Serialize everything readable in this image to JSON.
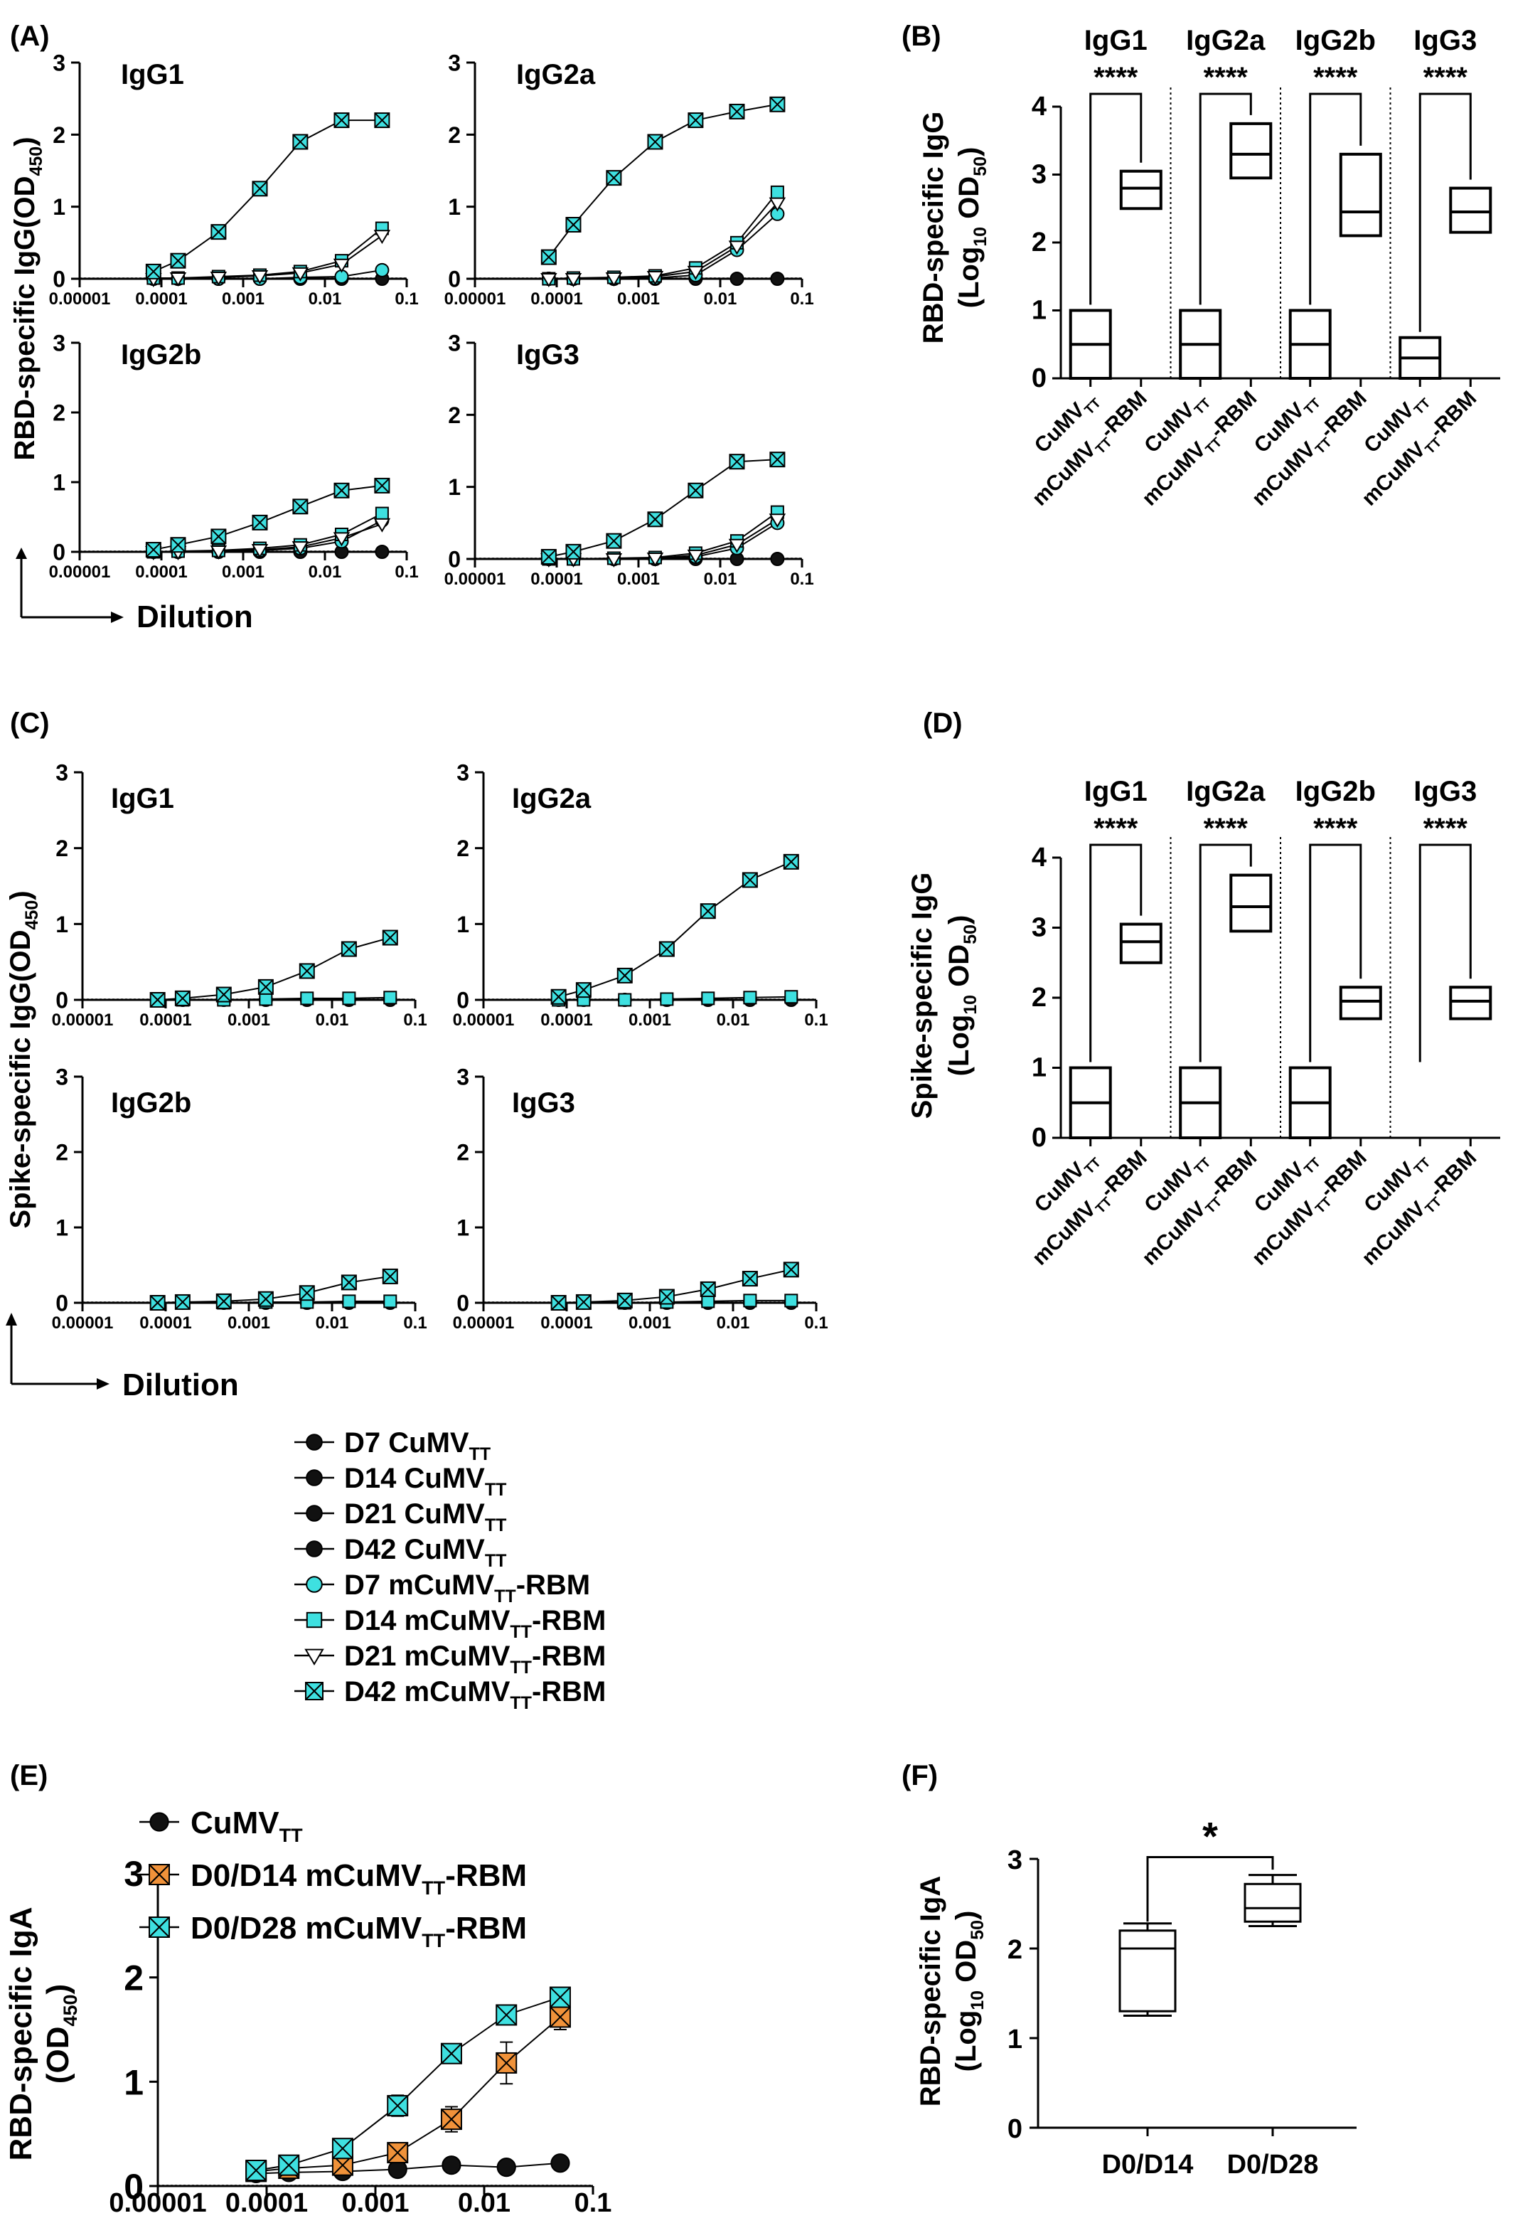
{
  "figure": {
    "panels": {
      "A": "(A)",
      "B": "(B)",
      "C": "(C)",
      "D": "(D)",
      "E": "(E)",
      "F": "(F)"
    },
    "dilution_label": "Dilution",
    "ylabel_A": "RBD-specific IgG(OD",
    "ylabel_A_sub": "450",
    "ylabel_A_close": ")",
    "ylabel_C": "Spike-specific IgG(OD",
    "ylabel_C_sub": "450",
    "ylabel_C_close": ")",
    "ylabel_B_1": "RBD-specific IgG",
    "ylabel_D_1": "Spike-specific IgG",
    "ylabel_BD_2a": "(Log",
    "ylabel_BD_2sub": "10",
    "ylabel_BD_2b": " OD",
    "ylabel_BD_2sub2": "50",
    "ylabel_BD_2c": ")",
    "ylabel_E_1": "RBD-specific IgA",
    "ylabel_E_2a": "(OD",
    "ylabel_E_2sub": "450",
    "ylabel_E_2c": ")",
    "ylabel_F_1": "RBD-specific IgA",
    "xtick_labels": [
      "0.00001",
      "0.0001",
      "0.001",
      "0.01",
      "0.1"
    ],
    "group_ctrl": "CuMV",
    "group_ctrl_sub": "TT",
    "group_rbm_a": "mCuMV",
    "group_rbm_sub": "TT",
    "group_rbm_b": "-RBM",
    "sig_4": "****",
    "sig_1": "*",
    "legend_main": [
      {
        "day": "D7",
        "pre": "CuMV",
        "sub": "TT",
        "post": ""
      },
      {
        "day": "D14",
        "pre": "CuMV",
        "sub": "TT",
        "post": ""
      },
      {
        "day": "D21",
        "pre": "CuMV",
        "sub": "TT",
        "post": ""
      },
      {
        "day": "D42",
        "pre": "CuMV",
        "sub": "TT",
        "post": ""
      },
      {
        "day": "D7",
        "pre": "mCuMV",
        "sub": "TT",
        "post": "-RBM"
      },
      {
        "day": "D14",
        "pre": "mCuMV",
        "sub": "TT",
        "post": "-RBM"
      },
      {
        "day": "D21",
        "pre": "mCuMV",
        "sub": "TT",
        "post": "-RBM"
      },
      {
        "day": "D42",
        "pre": "mCuMV",
        "sub": "TT",
        "post": "-RBM"
      }
    ],
    "legend_E": [
      {
        "pre": "CuMV",
        "sub": "TT",
        "post": ""
      },
      {
        "pre": "D0/D14 mCuMV",
        "sub": "TT",
        "post": "-RBM"
      },
      {
        "pre": "D0/D28 mCuMV",
        "sub": "TT",
        "post": "-RBM"
      }
    ],
    "colors": {
      "ctrl": "#111111",
      "rbm": "#3ee0e0",
      "d14": "#f0923a",
      "d28": "#3ee0e0"
    }
  },
  "chart_data": [
    {
      "panel": "A",
      "type": "line",
      "xscale": "log",
      "ylim": [
        0,
        3
      ],
      "x": [
        8e-05,
        0.00016,
        0.0005,
        0.0016,
        0.005,
        0.016,
        0.05
      ],
      "subplots": [
        {
          "title": "IgG1",
          "series": [
            {
              "name": "D7 CuMVTT",
              "values": [
                0,
                0,
                0,
                0,
                0,
                0,
                0
              ]
            },
            {
              "name": "D7 mCuMVTT-RBM",
              "values": [
                0,
                0,
                0,
                0,
                0.02,
                0.03,
                0.12
              ]
            },
            {
              "name": "D14 mCuMVTT-RBM",
              "values": [
                0.01,
                0.01,
                0.03,
                0.05,
                0.1,
                0.25,
                0.7
              ]
            },
            {
              "name": "D21 mCuMVTT-RBM",
              "values": [
                0,
                0.01,
                0.02,
                0.04,
                0.08,
                0.2,
                0.6
              ]
            },
            {
              "name": "D42 mCuMVTT-RBM",
              "values": [
                0.1,
                0.25,
                0.65,
                1.25,
                1.9,
                2.2,
                2.2
              ]
            }
          ]
        },
        {
          "title": "IgG2a",
          "series": [
            {
              "name": "D7 CuMVTT",
              "values": [
                0,
                0,
                0,
                0,
                0,
                0,
                0
              ]
            },
            {
              "name": "D7 mCuMVTT-RBM",
              "values": [
                0,
                0,
                0,
                0.01,
                0.05,
                0.4,
                0.9
              ]
            },
            {
              "name": "D14 mCuMVTT-RBM",
              "values": [
                0,
                0.01,
                0.02,
                0.04,
                0.15,
                0.5,
                1.2
              ]
            },
            {
              "name": "D21 mCuMVTT-RBM",
              "values": [
                0,
                0,
                0.01,
                0.03,
                0.1,
                0.45,
                1.05
              ]
            },
            {
              "name": "D42 mCuMVTT-RBM",
              "values": [
                0.3,
                0.75,
                1.4,
                1.9,
                2.2,
                2.32,
                2.42
              ]
            }
          ]
        },
        {
          "title": "IgG2b",
          "series": [
            {
              "name": "D7 CuMVTT",
              "values": [
                0,
                0,
                0,
                0,
                0,
                0,
                0
              ]
            },
            {
              "name": "D7 mCuMVTT-RBM",
              "values": [
                0,
                0,
                0,
                0.02,
                0.05,
                0.15,
                0.45
              ]
            },
            {
              "name": "D14 mCuMVTT-RBM",
              "values": [
                0,
                0.01,
                0.02,
                0.05,
                0.1,
                0.25,
                0.55
              ]
            },
            {
              "name": "D21 mCuMVTT-RBM",
              "values": [
                0,
                0,
                0.01,
                0.03,
                0.07,
                0.2,
                0.4
              ]
            },
            {
              "name": "D42 mCuMVTT-RBM",
              "values": [
                0.03,
                0.1,
                0.22,
                0.42,
                0.65,
                0.88,
                0.95
              ]
            }
          ]
        },
        {
          "title": "IgG3",
          "series": [
            {
              "name": "D7 CuMVTT",
              "values": [
                0,
                0,
                0,
                0,
                0,
                0,
                0
              ]
            },
            {
              "name": "D7 mCuMVTT-RBM",
              "values": [
                0,
                0,
                0,
                0,
                0.03,
                0.15,
                0.5
              ]
            },
            {
              "name": "D14 mCuMVTT-RBM",
              "values": [
                0,
                0,
                0.01,
                0.02,
                0.08,
                0.25,
                0.65
              ]
            },
            {
              "name": "D21 mCuMVTT-RBM",
              "values": [
                0,
                0,
                0,
                0.01,
                0.05,
                0.2,
                0.55
              ]
            },
            {
              "name": "D42 mCuMVTT-RBM",
              "values": [
                0.03,
                0.1,
                0.25,
                0.55,
                0.95,
                1.35,
                1.38
              ]
            }
          ]
        }
      ]
    },
    {
      "panel": "B",
      "type": "box",
      "ylim": [
        0,
        4
      ],
      "groups": [
        {
          "title": "IgG1",
          "ctrl": [
            0,
            0.5,
            1
          ],
          "rbm": [
            2.5,
            2.8,
            3.05
          ],
          "sig": "****"
        },
        {
          "title": "IgG2a",
          "ctrl": [
            0,
            0.5,
            1
          ],
          "rbm": [
            2.95,
            3.3,
            3.75
          ],
          "sig": "****"
        },
        {
          "title": "IgG2b",
          "ctrl": [
            0,
            0.5,
            1
          ],
          "rbm": [
            2.1,
            2.45,
            3.3
          ],
          "sig": "****"
        },
        {
          "title": "IgG3",
          "ctrl": [
            0,
            0.3,
            0.6
          ],
          "rbm": [
            2.15,
            2.45,
            2.8
          ],
          "sig": "****"
        }
      ]
    },
    {
      "panel": "C",
      "type": "line",
      "xscale": "log",
      "ylim": [
        0,
        3
      ],
      "x": [
        8e-05,
        0.00016,
        0.0005,
        0.0016,
        0.005,
        0.016,
        0.05
      ],
      "subplots": [
        {
          "title": "IgG1",
          "series": [
            {
              "name": "D7 CuMVTT",
              "values": [
                0,
                0,
                0,
                0,
                0,
                0,
                0
              ]
            },
            {
              "name": "D14 mCuMVTT-RBM",
              "values": [
                0,
                0,
                0,
                0.01,
                0.02,
                0.02,
                0.03
              ]
            },
            {
              "name": "D42 mCuMVTT-RBM",
              "values": [
                0,
                0.02,
                0.07,
                0.17,
                0.38,
                0.67,
                0.82
              ]
            }
          ]
        },
        {
          "title": "IgG2a",
          "series": [
            {
              "name": "D7 CuMVTT",
              "values": [
                0,
                0,
                0,
                0,
                0,
                0,
                0
              ]
            },
            {
              "name": "D14 mCuMVTT-RBM",
              "values": [
                0,
                0,
                0,
                0.01,
                0.02,
                0.03,
                0.04
              ]
            },
            {
              "name": "D42 mCuMVTT-RBM",
              "values": [
                0.04,
                0.13,
                0.32,
                0.67,
                1.17,
                1.58,
                1.82
              ]
            }
          ]
        },
        {
          "title": "IgG2b",
          "series": [
            {
              "name": "D7 CuMVTT",
              "values": [
                0,
                0,
                0,
                0,
                0,
                0,
                0
              ]
            },
            {
              "name": "D14 mCuMVTT-RBM",
              "values": [
                0,
                0,
                0,
                0.01,
                0.01,
                0.02,
                0.02
              ]
            },
            {
              "name": "D42 mCuMVTT-RBM",
              "values": [
                0,
                0.01,
                0.02,
                0.05,
                0.13,
                0.27,
                0.35
              ]
            }
          ]
        },
        {
          "title": "IgG3",
          "series": [
            {
              "name": "D7 CuMVTT",
              "values": [
                0,
                0,
                0,
                0,
                0,
                0,
                0
              ]
            },
            {
              "name": "D14 mCuMVTT-RBM",
              "values": [
                0,
                0,
                0,
                0.01,
                0.02,
                0.03,
                0.03
              ]
            },
            {
              "name": "D42 mCuMVTT-RBM",
              "values": [
                0,
                0.01,
                0.03,
                0.08,
                0.18,
                0.32,
                0.44
              ]
            }
          ]
        }
      ]
    },
    {
      "panel": "D",
      "type": "box",
      "ylim": [
        0,
        4
      ],
      "groups": [
        {
          "title": "IgG1",
          "ctrl": [
            0,
            0.5,
            1
          ],
          "rbm": [
            2.5,
            2.8,
            3.05
          ],
          "sig": "****"
        },
        {
          "title": "IgG2a",
          "ctrl": [
            0,
            0.5,
            1
          ],
          "rbm": [
            2.95,
            3.3,
            3.75
          ],
          "sig": "****"
        },
        {
          "title": "IgG2b",
          "ctrl": [
            0,
            0.5,
            1
          ],
          "rbm": [
            1.7,
            1.95,
            2.15
          ],
          "sig": "****"
        },
        {
          "title": "IgG3",
          "ctrl": [
            0,
            0,
            0
          ],
          "rbm": [
            1.7,
            1.95,
            2.15
          ],
          "sig": "****"
        }
      ]
    },
    {
      "panel": "E",
      "type": "line",
      "xscale": "log",
      "ylim": [
        0,
        3
      ],
      "x": [
        8e-05,
        0.00016,
        0.0005,
        0.0016,
        0.005,
        0.016,
        0.05
      ],
      "series": [
        {
          "name": "CuMVTT",
          "values": [
            0.12,
            0.13,
            0.14,
            0.16,
            0.2,
            0.18,
            0.22
          ]
        },
        {
          "name": "D0/D14 mCuMVTT-RBM",
          "values": [
            0.14,
            0.17,
            0.2,
            0.32,
            0.64,
            1.18,
            1.62
          ]
        },
        {
          "name": "D0/D28 mCuMVTT-RBM",
          "values": [
            0.15,
            0.2,
            0.36,
            0.77,
            1.27,
            1.64,
            1.81
          ]
        }
      ],
      "errors": {
        "D0/D14 mCuMVTT-RBM": [
          0,
          0,
          0,
          0.05,
          0.12,
          0.2,
          0.12
        ],
        "D0/D28 mCuMVTT-RBM": [
          0,
          0,
          0.05,
          0.1,
          0.07,
          0.05,
          0.03
        ]
      }
    },
    {
      "panel": "F",
      "type": "box",
      "ylim": [
        0,
        3
      ],
      "categories": [
        "D0/D14",
        "D0/D28"
      ],
      "boxes": [
        {
          "min": 1.25,
          "q1": 1.3,
          "median": 2.0,
          "q3": 2.2,
          "max": 2.28
        },
        {
          "min": 2.25,
          "q1": 2.3,
          "median": 2.45,
          "q3": 2.72,
          "max": 2.82
        }
      ],
      "sig": "*"
    }
  ]
}
